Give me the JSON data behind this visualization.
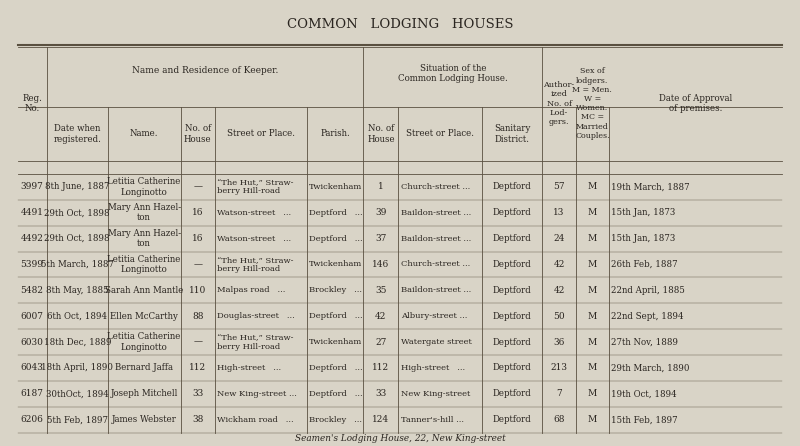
{
  "title": "COMMON   LODGING   HOUSES",
  "footer": "Seamen's Lodging House, 22, New King-street",
  "bg_color": "#d9d4c7",
  "text_color": "#2a2520",
  "line_color": "#5a5040",
  "font_size_title": 9.5,
  "font_size_header": 6.2,
  "font_size_data": 6.5,
  "rows": [
    {
      "reg": "3997",
      "date_reg": "8th June, 1887",
      "name": "Letitia Catherine\nLonginotto",
      "no_house_k": "—",
      "street_k": "“The Hut,” Straw-\nberry Hill-road",
      "parish": "Twickenham",
      "no_house_s": "1",
      "street_s": "Church-street ...",
      "sanitary": "Deptford",
      "auth_no": "57",
      "sex": "M",
      "date_approval": "19th March, 1887"
    },
    {
      "reg": "4491",
      "date_reg": "29th Oct, 1898",
      "name": "Mary Ann Hazel-\nton",
      "no_house_k": "16",
      "street_k": "Watson-street   ...",
      "parish": "Deptford   ...",
      "no_house_s": "39",
      "street_s": "Baildon-street ...",
      "sanitary": "Deptford",
      "auth_no": "13",
      "sex": "M",
      "date_approval": "15th Jan, 1873"
    },
    {
      "reg": "4492",
      "date_reg": "29th Oct, 1898",
      "name": "Mary Ann Hazel-\nton",
      "no_house_k": "16",
      "street_k": "Watson-street   ...",
      "parish": "Deptford   ...",
      "no_house_s": "37",
      "street_s": "Baildon-street ...",
      "sanitary": "Deptford",
      "auth_no": "24",
      "sex": "M",
      "date_approval": "15th Jan, 1873"
    },
    {
      "reg": "5399",
      "date_reg": "5th March, 1887",
      "name": "Letitia Catherine\nLonginotto",
      "no_house_k": "—",
      "street_k": "“The Hut,” Straw-\nberry Hill-road",
      "parish": "Twickenham",
      "no_house_s": "146",
      "street_s": "Church-street ...",
      "sanitary": "Deptford",
      "auth_no": "42",
      "sex": "M",
      "date_approval": "26th Feb, 1887"
    },
    {
      "reg": "5482",
      "date_reg": "8th May, 1885",
      "name": "Sarah Ann Mantle",
      "no_house_k": "110",
      "street_k": "Malpas road   ...",
      "parish": "Brockley   ...",
      "no_house_s": "35",
      "street_s": "Baildon-street ...",
      "sanitary": "Deptford",
      "auth_no": "42",
      "sex": "M",
      "date_approval": "22nd April, 1885"
    },
    {
      "reg": "6007",
      "date_reg": "6th Oct, 1894",
      "name": "Ellen McCarthy",
      "no_house_k": "88",
      "street_k": "Douglas-street   ...",
      "parish": "Deptford   ...",
      "no_house_s": "42",
      "street_s": "Albury-street ...",
      "sanitary": "Deptford",
      "auth_no": "50",
      "sex": "M",
      "date_approval": "22nd Sept, 1894"
    },
    {
      "reg": "6030",
      "date_reg": "18th Dec, 1889",
      "name": "Letitia Catherine\nLonginotto",
      "no_house_k": "—",
      "street_k": "“The Hut,” Straw-\nberry Hill-road",
      "parish": "Twickenham",
      "no_house_s": "27",
      "street_s": "Watergate street",
      "sanitary": "Deptford",
      "auth_no": "36",
      "sex": "M",
      "date_approval": "27th Nov, 1889"
    },
    {
      "reg": "6043",
      "date_reg": "18th April, 1890",
      "name": "Bernard Jaffa",
      "no_house_k": "112",
      "street_k": "High-street   ...",
      "parish": "Deptford   ...",
      "no_house_s": "112",
      "street_s": "High-street   ...",
      "sanitary": "Deptford",
      "auth_no": "213",
      "sex": "M",
      "date_approval": "29th March, 1890"
    },
    {
      "reg": "6187",
      "date_reg": "30thOct, 1894",
      "name": "Joseph Mitchell",
      "no_house_k": "33",
      "street_k": "New King-street ...",
      "parish": "Deptford   ...",
      "no_house_s": "33",
      "street_s": "New King-street",
      "sanitary": "Deptford",
      "auth_no": "7",
      "sex": "M",
      "date_approval": "19th Oct, 1894"
    },
    {
      "reg": "6206",
      "date_reg": "5th Feb, 1897",
      "name": "James Webster",
      "no_house_k": "38",
      "street_k": "Wickham road   ...",
      "parish": "Brockley   ...",
      "no_house_s": "124",
      "street_s": "Tanner's-hill ...",
      "sanitary": "Deptford",
      "auth_no": "68",
      "sex": "M",
      "date_approval": "15th Feb, 1897"
    }
  ]
}
